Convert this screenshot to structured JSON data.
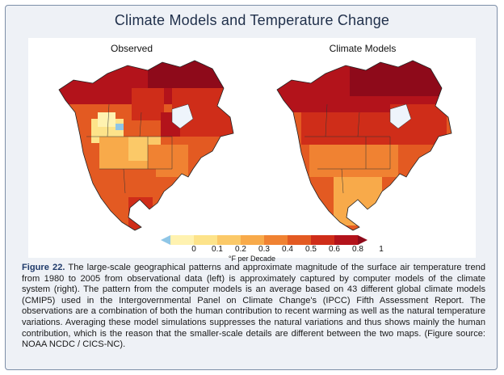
{
  "title": "Climate Models and Temperature Change",
  "maps": {
    "left_label": "Observed",
    "right_label": "Climate Models"
  },
  "legend": {
    "ticks": [
      "0",
      "0.1",
      "0.2",
      "0.3",
      "0.4",
      "0.5",
      "0.6",
      "0.8",
      "1"
    ],
    "units": "°F per Decade",
    "colors": [
      "#8fc6e6",
      "#fff2b0",
      "#fde38a",
      "#fbc968",
      "#f8aa4a",
      "#f08232",
      "#e35a22",
      "#cf2d19",
      "#b3131b",
      "#8e0a1a"
    ]
  },
  "caption": {
    "label": "Figure 22.",
    "text": " The large-scale geographical patterns and approximate magnitude of the surface air temperature trend from 1980 to 2005 from observational data (left) is approximately captured by computer models of the climate system (right). The pattern from the computer models is an average based on 43 different global climate models (CMIP5) used in the Intergovernmental Panel on Climate Change's (IPCC) Fifth Assessment Report. The observations are a combination of both the human contribution to recent warming as well as the natural temperature variations. Averaging these model simulations suppresses the natural variations and thus shows mainly the human contribution, which is the reason that the smaller-scale details are different between the two maps. (Figure source: NOAA NCDC / CICS-NC)."
  }
}
